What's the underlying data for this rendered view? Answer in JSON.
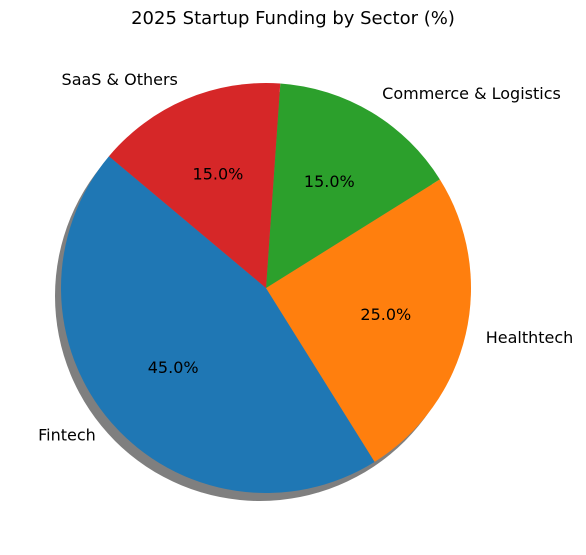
{
  "chart_data": {
    "type": "pie",
    "title": "2025 Startup Funding by Sector (%)",
    "categories": [
      "Fintech",
      "Healthtech",
      "Commerce & Logistics",
      "SaaS & Others"
    ],
    "values": [
      45,
      25,
      15,
      15
    ],
    "value_labels": [
      "45.0%",
      "25.0%",
      "15.0%",
      "15.0%"
    ],
    "colors": [
      "#1f77b4",
      "#ff7f0e",
      "#2ca02c",
      "#d62728"
    ],
    "start_angle": 140,
    "counterclockwise": true,
    "shadow": true
  }
}
